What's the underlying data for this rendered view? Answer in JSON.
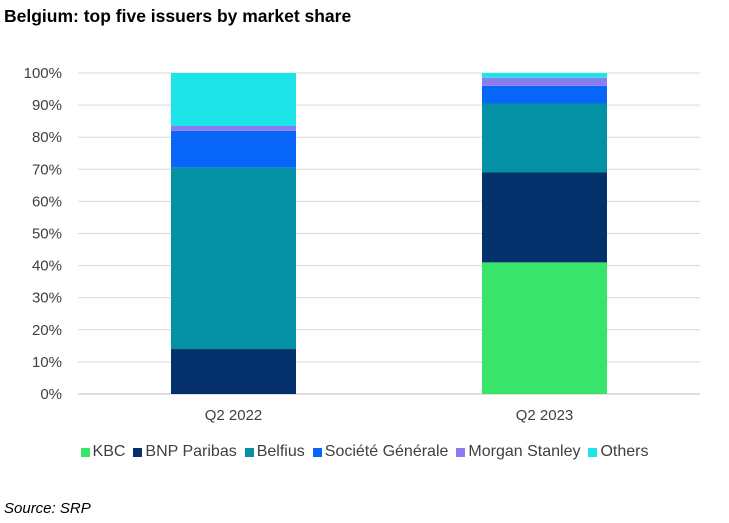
{
  "title": "Belgium: top five issuers by market share",
  "source": "Source: SRP",
  "chart_data": {
    "type": "bar",
    "stacked": true,
    "title": "Belgium: top five issuers by market share",
    "xlabel": "",
    "ylabel": "",
    "ylim": [
      0,
      100
    ],
    "yticks": [
      "0%",
      "10%",
      "20%",
      "30%",
      "40%",
      "50%",
      "60%",
      "70%",
      "80%",
      "90%",
      "100%"
    ],
    "grid": true,
    "legend_position": "bottom",
    "categories": [
      "Q2 2022",
      "Q2 2023"
    ],
    "series": [
      {
        "name": "KBC",
        "color": "#39E46A",
        "values": [
          0,
          41
        ]
      },
      {
        "name": "BNP Paribas",
        "color": "#04306C",
        "values": [
          14,
          28
        ]
      },
      {
        "name": "Belfius",
        "color": "#0491A6",
        "values": [
          56.5,
          21.5
        ]
      },
      {
        "name": "Société Générale",
        "color": "#0766F8",
        "values": [
          11.5,
          5.5
        ]
      },
      {
        "name": "Morgan Stanley",
        "color": "#8B7DF0",
        "values": [
          1.5,
          2.5
        ]
      },
      {
        "name": "Others",
        "color": "#1DE4E9",
        "values": [
          16.5,
          1.5
        ]
      }
    ]
  }
}
